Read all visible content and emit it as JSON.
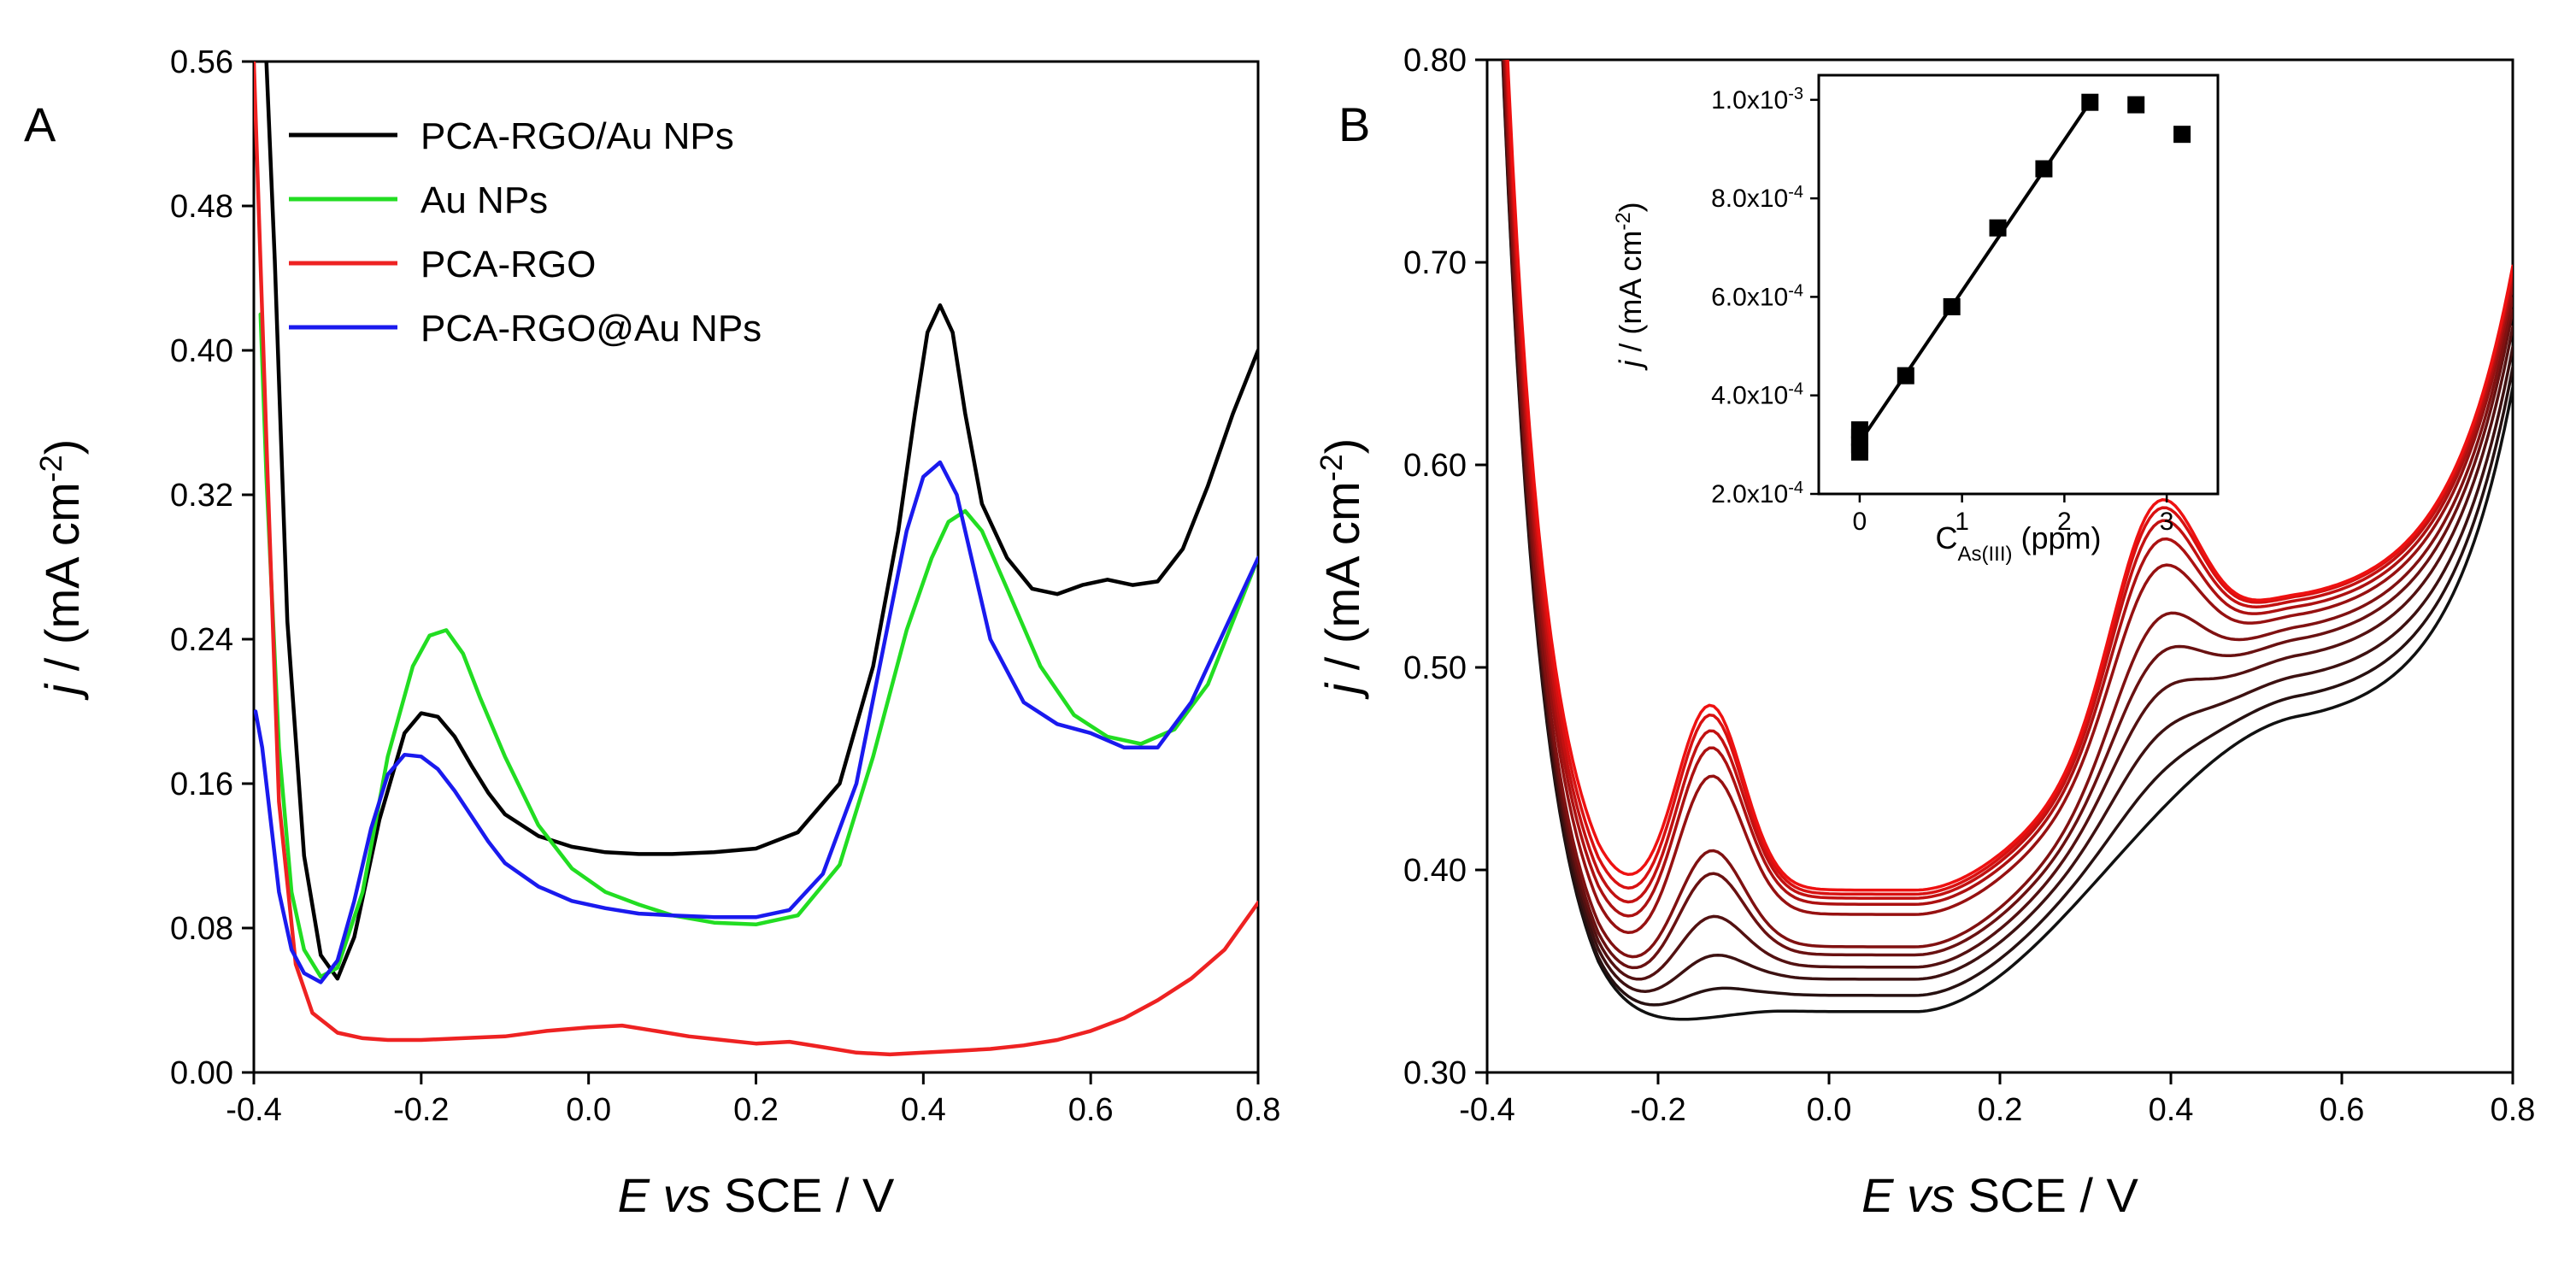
{
  "chart_data": [
    {
      "id": "A",
      "type": "line",
      "panel_label": "A",
      "xlabel": {
        "italic": "E vs",
        "rest": " SCE / V"
      },
      "ylabel": {
        "italic": "j",
        "rest": " / (mA cm",
        "sup": "-2",
        "close": ")"
      },
      "xlim": [
        -0.4,
        0.8
      ],
      "ylim": [
        0.0,
        0.56
      ],
      "xticks": [
        -0.4,
        -0.2,
        0.0,
        0.2,
        0.4,
        0.6,
        0.8
      ],
      "yticks": [
        0.0,
        0.08,
        0.16,
        0.24,
        0.32,
        0.4,
        0.48,
        0.56
      ],
      "xtick_labels": [
        "-0.4",
        "-0.2",
        "0.0",
        "0.2",
        "0.4",
        "0.6",
        "0.8"
      ],
      "ytick_labels": [
        "0.00",
        "0.08",
        "0.16",
        "0.24",
        "0.32",
        "0.40",
        "0.48",
        "0.56"
      ],
      "legend_position": "top-left",
      "series": [
        {
          "name": "PCA-RGO/Au NPs",
          "color": "#000000",
          "x": [
            -0.385,
            -0.375,
            -0.36,
            -0.34,
            -0.32,
            -0.3,
            -0.28,
            -0.25,
            -0.22,
            -0.2,
            -0.18,
            -0.16,
            -0.14,
            -0.12,
            -0.1,
            -0.06,
            -0.02,
            0.02,
            0.06,
            0.1,
            0.15,
            0.2,
            0.25,
            0.3,
            0.34,
            0.37,
            0.39,
            0.405,
            0.42,
            0.435,
            0.45,
            0.47,
            0.5,
            0.53,
            0.56,
            0.59,
            0.62,
            0.65,
            0.68,
            0.71,
            0.74,
            0.77,
            0.8
          ],
          "y": [
            0.56,
            0.45,
            0.25,
            0.12,
            0.065,
            0.052,
            0.075,
            0.14,
            0.188,
            0.199,
            0.197,
            0.186,
            0.17,
            0.155,
            0.143,
            0.131,
            0.125,
            0.122,
            0.121,
            0.121,
            0.122,
            0.124,
            0.133,
            0.16,
            0.225,
            0.3,
            0.365,
            0.41,
            0.425,
            0.41,
            0.365,
            0.315,
            0.285,
            0.268,
            0.265,
            0.27,
            0.273,
            0.27,
            0.272,
            0.29,
            0.325,
            0.365,
            0.4
          ]
        },
        {
          "name": "Au NPs",
          "color": "#22dd22",
          "x": [
            -0.392,
            -0.385,
            -0.37,
            -0.355,
            -0.34,
            -0.32,
            -0.3,
            -0.27,
            -0.24,
            -0.21,
            -0.19,
            -0.17,
            -0.15,
            -0.13,
            -0.1,
            -0.06,
            -0.02,
            0.02,
            0.06,
            0.1,
            0.15,
            0.2,
            0.25,
            0.3,
            0.34,
            0.38,
            0.41,
            0.43,
            0.45,
            0.47,
            0.5,
            0.54,
            0.58,
            0.62,
            0.66,
            0.7,
            0.74,
            0.77,
            0.8
          ],
          "y": [
            0.42,
            0.33,
            0.18,
            0.1,
            0.068,
            0.053,
            0.058,
            0.1,
            0.175,
            0.225,
            0.242,
            0.245,
            0.232,
            0.208,
            0.175,
            0.137,
            0.113,
            0.1,
            0.093,
            0.087,
            0.083,
            0.082,
            0.087,
            0.115,
            0.175,
            0.245,
            0.285,
            0.305,
            0.311,
            0.3,
            0.268,
            0.225,
            0.198,
            0.186,
            0.182,
            0.19,
            0.215,
            0.25,
            0.285
          ]
        },
        {
          "name": "PCA-RGO",
          "color": "#ee2222",
          "x": [
            -0.4,
            -0.385,
            -0.37,
            -0.35,
            -0.33,
            -0.3,
            -0.27,
            -0.24,
            -0.2,
            -0.15,
            -0.1,
            -0.05,
            0.0,
            0.04,
            0.08,
            0.12,
            0.16,
            0.2,
            0.24,
            0.28,
            0.32,
            0.36,
            0.4,
            0.44,
            0.48,
            0.52,
            0.56,
            0.6,
            0.64,
            0.68,
            0.72,
            0.76,
            0.8
          ],
          "y": [
            0.56,
            0.35,
            0.15,
            0.06,
            0.033,
            0.022,
            0.019,
            0.018,
            0.018,
            0.019,
            0.02,
            0.023,
            0.025,
            0.026,
            0.023,
            0.02,
            0.018,
            0.016,
            0.017,
            0.014,
            0.011,
            0.01,
            0.011,
            0.012,
            0.013,
            0.015,
            0.018,
            0.023,
            0.03,
            0.04,
            0.052,
            0.068,
            0.094
          ]
        },
        {
          "name": "PCA-RGO@Au NPs",
          "color": "#1a1aee",
          "x": [
            -0.398,
            -0.39,
            -0.38,
            -0.37,
            -0.355,
            -0.34,
            -0.32,
            -0.3,
            -0.28,
            -0.26,
            -0.24,
            -0.22,
            -0.2,
            -0.18,
            -0.16,
            -0.14,
            -0.12,
            -0.1,
            -0.06,
            -0.02,
            0.02,
            0.06,
            0.1,
            0.15,
            0.2,
            0.24,
            0.28,
            0.32,
            0.35,
            0.38,
            0.4,
            0.42,
            0.44,
            0.46,
            0.48,
            0.52,
            0.56,
            0.6,
            0.64,
            0.68,
            0.72,
            0.76,
            0.8
          ],
          "y": [
            0.2,
            0.18,
            0.14,
            0.1,
            0.068,
            0.055,
            0.05,
            0.062,
            0.095,
            0.135,
            0.165,
            0.176,
            0.175,
            0.168,
            0.156,
            0.142,
            0.128,
            0.116,
            0.103,
            0.095,
            0.091,
            0.088,
            0.087,
            0.086,
            0.086,
            0.09,
            0.11,
            0.16,
            0.23,
            0.3,
            0.33,
            0.338,
            0.32,
            0.28,
            0.24,
            0.205,
            0.193,
            0.188,
            0.18,
            0.18,
            0.205,
            0.245,
            0.285
          ]
        }
      ]
    },
    {
      "id": "B",
      "type": "line",
      "panel_label": "B",
      "xlabel": {
        "italic": "E vs",
        "rest": " SCE / V"
      },
      "ylabel": {
        "italic": "j",
        "rest": " / (mA cm",
        "sup": "-2",
        "close": ")"
      },
      "xlim": [
        -0.4,
        0.8
      ],
      "ylim": [
        0.3,
        0.8
      ],
      "xticks": [
        -0.4,
        -0.2,
        0.0,
        0.2,
        0.4,
        0.6,
        0.8
      ],
      "yticks": [
        0.3,
        0.4,
        0.5,
        0.6,
        0.7,
        0.8
      ],
      "xtick_labels": [
        "-0.4",
        "-0.2",
        "0.0",
        "0.2",
        "0.4",
        "0.6",
        "0.8"
      ],
      "ytick_labels": [
        "0.30",
        "0.40",
        "0.50",
        "0.60",
        "0.70",
        "0.80"
      ],
      "curve_count": 11,
      "color_gradient": [
        "#111111",
        "#ee1111"
      ],
      "curve_params": {
        "min_y": [
          0.316,
          0.318,
          0.322,
          0.326,
          0.33,
          0.335,
          0.345,
          0.353,
          0.36,
          0.367,
          0.374
        ],
        "peak1_amp": [
          0.0,
          0.008,
          0.018,
          0.032,
          0.048,
          0.055,
          0.078,
          0.086,
          0.09,
          0.094,
          0.095
        ],
        "plateau_y": [
          0.33,
          0.338,
          0.346,
          0.352,
          0.358,
          0.362,
          0.378,
          0.383,
          0.386,
          0.388,
          0.39
        ],
        "peak2_amp": [
          0.0,
          0.01,
          0.022,
          0.035,
          0.048,
          0.062,
          0.08,
          0.09,
          0.097,
          0.102,
          0.105
        ],
        "high_y": [
          0.47,
          0.48,
          0.49,
          0.5,
          0.508,
          0.514,
          0.52,
          0.524,
          0.527,
          0.529,
          0.53
        ]
      },
      "inset": {
        "type": "scatter",
        "xlabel": {
          "main": "C",
          "sub": "As(III)",
          "rest": " (ppm)"
        },
        "ylabel": {
          "italic": "j",
          "rest": " / (mA cm",
          "sup": "-2",
          "close": ")"
        },
        "xlim": [
          -0.4,
          3.5
        ],
        "ylim": [
          0.0002,
          0.00105
        ],
        "xticks": [
          0,
          1,
          2,
          3
        ],
        "xtick_labels": [
          "0",
          "1",
          "2",
          "3"
        ],
        "yticks": [
          0.0002,
          0.0004,
          0.0006,
          0.0008,
          0.001
        ],
        "ytick_labels": [
          {
            "mant": "2.0x10",
            "exp": "-4"
          },
          {
            "mant": "4.0x10",
            "exp": "-4"
          },
          {
            "mant": "6.0x10",
            "exp": "-4"
          },
          {
            "mant": "8.0x10",
            "exp": "-4"
          },
          {
            "mant": "1.0x10",
            "exp": "-3"
          }
        ],
        "points": {
          "x": [
            0,
            0,
            0,
            0,
            0.45,
            0.9,
            1.35,
            1.8,
            2.25,
            2.7,
            3.15
          ],
          "y": [
            0.000285,
            0.0003,
            0.000315,
            0.00033,
            0.00044,
            0.00058,
            0.00074,
            0.00086,
            0.000995,
            0.00099,
            0.00093
          ]
        },
        "fit_line": {
          "x": [
            0,
            2.25
          ],
          "y": [
            0.000305,
            0.000995
          ]
        }
      }
    }
  ]
}
